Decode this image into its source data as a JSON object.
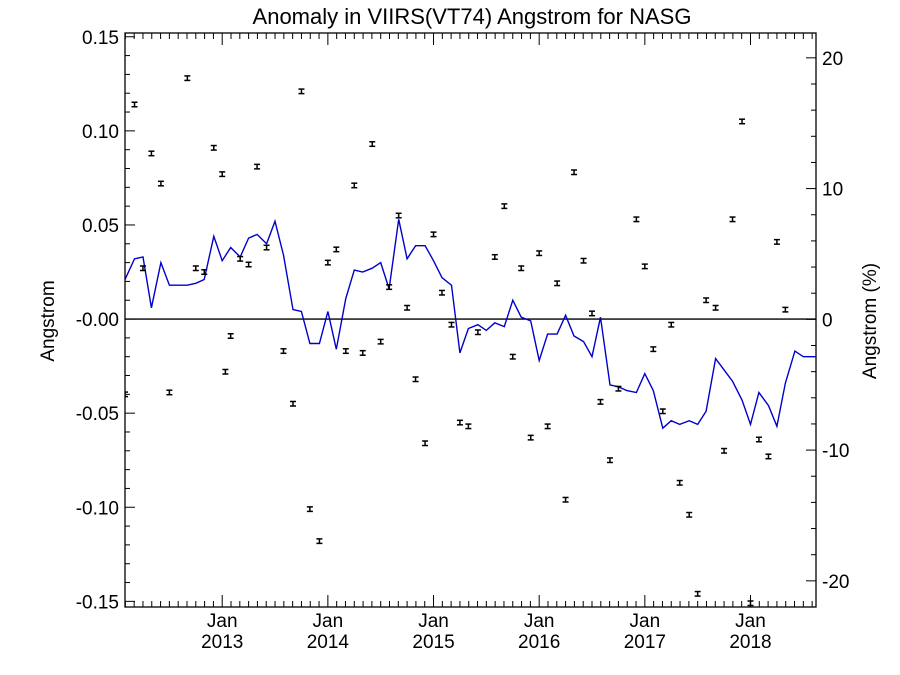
{
  "chart_data": {
    "type": "scatter",
    "title": "Anomaly in VIIRS(VT74) Angstrom for NASG",
    "ylabel": "Angstrom",
    "y2label": "Angstrom (%)",
    "xlim": [
      2012.08,
      2018.62
    ],
    "ylim": [
      -0.153,
      0.152
    ],
    "y2lim": [
      -22.0,
      21.9
    ],
    "grid": false,
    "zero_line": true,
    "x_ticks": [
      {
        "x": 2013.0,
        "month": "Jan",
        "year": "2013"
      },
      {
        "x": 2014.0,
        "month": "Jan",
        "year": "2014"
      },
      {
        "x": 2015.0,
        "month": "Jan",
        "year": "2015"
      },
      {
        "x": 2016.0,
        "month": "Jan",
        "year": "2016"
      },
      {
        "x": 2017.0,
        "month": "Jan",
        "year": "2017"
      },
      {
        "x": 2018.0,
        "month": "Jan",
        "year": "2018"
      }
    ],
    "y_ticks": [
      {
        "v": 0.15,
        "label": "0.15"
      },
      {
        "v": 0.1,
        "label": "0.10"
      },
      {
        "v": 0.05,
        "label": "0.05"
      },
      {
        "v": 0.0,
        "label": "-0.00"
      },
      {
        "v": -0.05,
        "label": "-0.05"
      },
      {
        "v": -0.1,
        "label": "-0.10"
      },
      {
        "v": -0.15,
        "label": "-0.15"
      }
    ],
    "y2_ticks": [
      {
        "v": 20,
        "label": "20"
      },
      {
        "v": 10,
        "label": "10"
      },
      {
        "v": 0,
        "label": "0"
      },
      {
        "v": -10,
        "label": "-10"
      },
      {
        "v": -20,
        "label": "-20"
      }
    ],
    "series": [
      {
        "kind": "points_with_error_bars",
        "color": "#000000",
        "error": 0.0012,
        "points": [
          [
            2012.08,
            -0.04
          ],
          [
            2012.17,
            0.114
          ],
          [
            2012.25,
            0.027
          ],
          [
            2012.33,
            0.088
          ],
          [
            2012.42,
            0.072
          ],
          [
            2012.5,
            -0.039
          ],
          [
            2012.67,
            0.128
          ],
          [
            2012.75,
            0.027
          ],
          [
            2012.83,
            0.025
          ],
          [
            2012.92,
            0.091
          ],
          [
            2013.0,
            0.077
          ],
          [
            2013.03,
            -0.028
          ],
          [
            2013.08,
            -0.009
          ],
          [
            2013.17,
            0.032
          ],
          [
            2013.25,
            0.029
          ],
          [
            2013.33,
            0.081
          ],
          [
            2013.42,
            0.038
          ],
          [
            2013.58,
            -0.017
          ],
          [
            2013.67,
            -0.045
          ],
          [
            2013.75,
            0.121
          ],
          [
            2013.83,
            -0.101
          ],
          [
            2013.92,
            -0.118
          ],
          [
            2014.0,
            0.03
          ],
          [
            2014.08,
            0.037
          ],
          [
            2014.17,
            -0.017
          ],
          [
            2014.25,
            0.071
          ],
          [
            2014.33,
            -0.018
          ],
          [
            2014.42,
            0.093
          ],
          [
            2014.5,
            -0.012
          ],
          [
            2014.58,
            0.017
          ],
          [
            2014.67,
            0.055
          ],
          [
            2014.75,
            0.006
          ],
          [
            2014.83,
            -0.032
          ],
          [
            2014.92,
            -0.066
          ],
          [
            2015.0,
            0.045
          ],
          [
            2015.08,
            0.014
          ],
          [
            2015.17,
            -0.003
          ],
          [
            2015.25,
            -0.055
          ],
          [
            2015.33,
            -0.057
          ],
          [
            2015.42,
            -0.007
          ],
          [
            2015.58,
            0.033
          ],
          [
            2015.67,
            0.06
          ],
          [
            2015.75,
            -0.02
          ],
          [
            2015.83,
            0.027
          ],
          [
            2015.92,
            -0.063
          ],
          [
            2016.0,
            0.035
          ],
          [
            2016.08,
            -0.057
          ],
          [
            2016.17,
            0.019
          ],
          [
            2016.25,
            -0.096
          ],
          [
            2016.33,
            0.078
          ],
          [
            2016.42,
            0.031
          ],
          [
            2016.5,
            0.003
          ],
          [
            2016.58,
            -0.044
          ],
          [
            2016.67,
            -0.075
          ],
          [
            2016.75,
            -0.037
          ],
          [
            2016.92,
            0.053
          ],
          [
            2017.0,
            0.028
          ],
          [
            2017.08,
            -0.016
          ],
          [
            2017.17,
            -0.049
          ],
          [
            2017.25,
            -0.003
          ],
          [
            2017.33,
            -0.087
          ],
          [
            2017.42,
            -0.104
          ],
          [
            2017.5,
            -0.146
          ],
          [
            2017.58,
            0.01
          ],
          [
            2017.67,
            0.006
          ],
          [
            2017.75,
            -0.07
          ],
          [
            2017.83,
            0.053
          ],
          [
            2017.92,
            0.105
          ],
          [
            2018.0,
            -0.151
          ],
          [
            2018.08,
            -0.064
          ],
          [
            2018.17,
            -0.073
          ],
          [
            2018.25,
            0.041
          ],
          [
            2018.33,
            0.005
          ]
        ]
      },
      {
        "kind": "line",
        "color": "#0000cc",
        "x": [
          2012.08,
          2012.17,
          2012.25,
          2012.33,
          2012.42,
          2012.5,
          2012.58,
          2012.67,
          2012.75,
          2012.83,
          2012.92,
          2013.0,
          2013.08,
          2013.17,
          2013.25,
          2013.33,
          2013.42,
          2013.5,
          2013.58,
          2013.67,
          2013.75,
          2013.83,
          2013.92,
          2014.0,
          2014.08,
          2014.17,
          2014.25,
          2014.33,
          2014.42,
          2014.5,
          2014.58,
          2014.67,
          2014.75,
          2014.83,
          2014.92,
          2015.0,
          2015.08,
          2015.17,
          2015.25,
          2015.33,
          2015.42,
          2015.5,
          2015.58,
          2015.67,
          2015.75,
          2015.83,
          2015.92,
          2016.0,
          2016.08,
          2016.17,
          2016.25,
          2016.33,
          2016.42,
          2016.5,
          2016.58,
          2016.67,
          2016.75,
          2016.83,
          2016.92,
          2017.0,
          2017.08,
          2017.17,
          2017.25,
          2017.33,
          2017.42,
          2017.5,
          2017.58,
          2017.67,
          2017.75,
          2017.83,
          2017.92,
          2018.0,
          2018.08,
          2018.17,
          2018.25,
          2018.33,
          2018.42,
          2018.5,
          2018.58,
          2018.62
        ],
        "y": [
          0.021,
          0.032,
          0.033,
          0.006,
          0.03,
          0.018,
          0.018,
          0.018,
          0.019,
          0.021,
          0.044,
          0.031,
          0.038,
          0.033,
          0.043,
          0.045,
          0.04,
          0.052,
          0.034,
          0.005,
          0.004,
          -0.013,
          -0.013,
          0.004,
          -0.016,
          0.011,
          0.026,
          0.025,
          0.027,
          0.03,
          0.016,
          0.053,
          0.032,
          0.039,
          0.039,
          0.031,
          0.022,
          0.018,
          -0.018,
          -0.005,
          -0.003,
          -0.006,
          -0.002,
          -0.004,
          0.01,
          0.001,
          -0.001,
          -0.022,
          -0.008,
          -0.008,
          0.002,
          -0.009,
          -0.012,
          -0.02,
          0.001,
          -0.035,
          -0.036,
          -0.038,
          -0.039,
          -0.029,
          -0.038,
          -0.058,
          -0.054,
          -0.056,
          -0.054,
          -0.056,
          -0.049,
          -0.021,
          -0.027,
          -0.033,
          -0.043,
          -0.056,
          -0.039,
          -0.046,
          -0.057,
          -0.034,
          -0.017,
          -0.02,
          -0.02,
          -0.02
        ]
      }
    ]
  }
}
